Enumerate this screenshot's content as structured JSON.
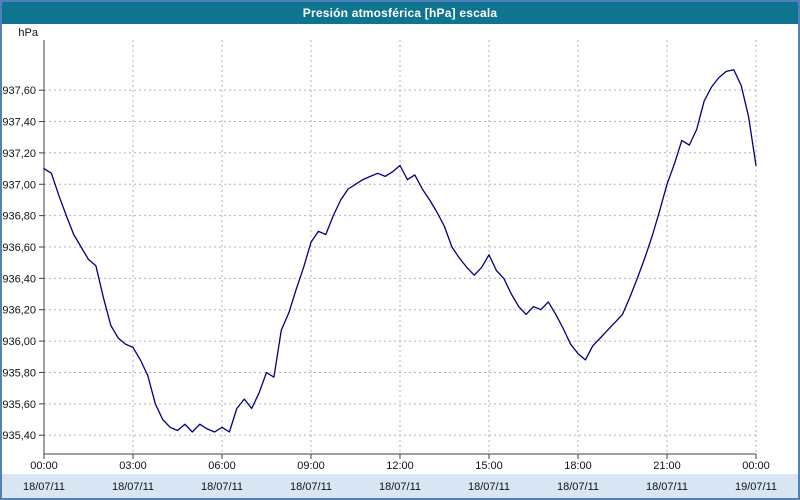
{
  "title_bar": {
    "title": "Presión atmosférica [hPa] escala"
  },
  "chart_data": {
    "type": "line",
    "title": "Presión atmosférica [hPa] escala",
    "ylabel": "hPa",
    "xlabel": "",
    "grid": "dashed",
    "legend": "none",
    "xlim": [
      0,
      24
    ],
    "ylim": [
      935.28,
      937.92
    ],
    "colors": {
      "line": "#000080",
      "grid": "#b3b3b3",
      "axis": "#404040",
      "date_strip": "#d8e6f4",
      "title_bg": "#0e7490",
      "title_text": "#ffffff",
      "border": "#4f81bd",
      "plot_bg": "#ffffff"
    },
    "y_ticks": [
      {
        "value": 937.6,
        "label": "937,60"
      },
      {
        "value": 937.4,
        "label": "937,40"
      },
      {
        "value": 937.2,
        "label": "937,20"
      },
      {
        "value": 937.0,
        "label": "937,00"
      },
      {
        "value": 936.8,
        "label": "936,80"
      },
      {
        "value": 936.6,
        "label": "936,60"
      },
      {
        "value": 936.4,
        "label": "936,40"
      },
      {
        "value": 936.2,
        "label": "936,20"
      },
      {
        "value": 936.0,
        "label": "936,00"
      },
      {
        "value": 935.8,
        "label": "935,80"
      },
      {
        "value": 935.6,
        "label": "935,60"
      },
      {
        "value": 935.4,
        "label": "935,40"
      }
    ],
    "x_ticks": [
      {
        "hour": 0,
        "time": "00:00",
        "date": "18/07/11"
      },
      {
        "hour": 3,
        "time": "03:00",
        "date": "18/07/11"
      },
      {
        "hour": 6,
        "time": "06:00",
        "date": "18/07/11"
      },
      {
        "hour": 9,
        "time": "09:00",
        "date": "18/07/11"
      },
      {
        "hour": 12,
        "time": "12:00",
        "date": "18/07/11"
      },
      {
        "hour": 15,
        "time": "15:00",
        "date": "18/07/11"
      },
      {
        "hour": 18,
        "time": "18:00",
        "date": "18/07/11"
      },
      {
        "hour": 21,
        "time": "21:00",
        "date": "18/07/11"
      },
      {
        "hour": 24,
        "time": "00:00",
        "date": "19/07/11"
      }
    ],
    "series": [
      {
        "name": "Presión atmosférica [hPa]",
        "x_start_hour": 0,
        "x_step_hours": 0.25,
        "values": [
          937.1,
          937.07,
          936.93,
          936.8,
          936.68,
          936.6,
          936.52,
          936.48,
          936.28,
          936.1,
          936.02,
          935.98,
          935.96,
          935.88,
          935.78,
          935.6,
          935.5,
          935.45,
          935.43,
          935.47,
          935.42,
          935.47,
          935.44,
          935.42,
          935.45,
          935.42,
          935.57,
          935.63,
          935.57,
          935.67,
          935.8,
          935.77,
          936.07,
          936.18,
          936.33,
          936.47,
          936.63,
          936.7,
          936.68,
          936.8,
          936.9,
          936.97,
          937.0,
          937.03,
          937.05,
          937.07,
          937.05,
          937.08,
          937.12,
          937.03,
          937.06,
          936.97,
          936.9,
          936.82,
          936.73,
          936.6,
          936.53,
          936.47,
          936.42,
          936.47,
          936.55,
          936.45,
          936.4,
          936.3,
          936.22,
          936.17,
          936.22,
          936.2,
          936.25,
          936.17,
          936.08,
          935.98,
          935.92,
          935.88,
          935.97,
          936.02,
          936.07,
          936.12,
          936.17,
          936.28,
          936.4,
          936.53,
          936.67,
          936.83,
          937.0,
          937.13,
          937.28,
          937.25,
          937.35,
          937.53,
          937.62,
          937.68,
          937.72,
          937.73,
          937.63,
          937.43,
          937.12
        ]
      }
    ]
  }
}
